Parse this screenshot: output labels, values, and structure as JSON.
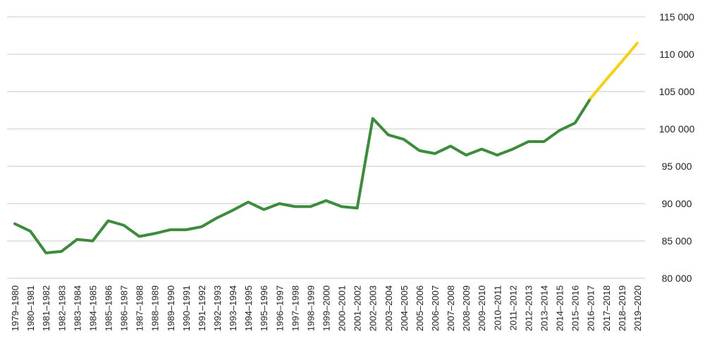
{
  "chart_data": {
    "type": "line",
    "x": [
      "1979–1980",
      "1980–1981",
      "1981–1982",
      "1982–1983",
      "1983–1984",
      "1984–1985",
      "1985–1986",
      "1986–1987",
      "1987–1988",
      "1988–1989",
      "1989–1990",
      "1990–1991",
      "1991–1992",
      "1992–1993",
      "1993–1994",
      "1994–1995",
      "1995–1996",
      "1996–1997",
      "1997–1998",
      "1998–1999",
      "1999–2000",
      "2000–2001",
      "2001–2002",
      "2002–2003",
      "2003–2004",
      "2004–2005",
      "2005–2006",
      "2006–2007",
      "2007–2008",
      "2008–2009",
      "2009–2010",
      "2010–2011",
      "2011–2012",
      "2012–2013",
      "2013–2014",
      "2014–2015",
      "2015–2016",
      "2016–2017",
      "2017–2018",
      "2018–2019",
      "2019–2020"
    ],
    "series": [
      {
        "color": "#3d8b3d",
        "values": [
          87300,
          86300,
          83400,
          83600,
          85200,
          85000,
          87700,
          87100,
          85600,
          86000,
          86500,
          86500,
          86900,
          88100,
          89100,
          90200,
          89200,
          90000,
          89600,
          89600,
          90400,
          89600,
          89400,
          101400,
          99200,
          98600,
          97100,
          96700,
          97700,
          96500,
          97300,
          96500,
          97300,
          98300,
          98300,
          99800,
          100800,
          104100,
          null,
          null,
          null
        ]
      },
      {
        "color": "#f5d019",
        "values": [
          null,
          null,
          null,
          null,
          null,
          null,
          null,
          null,
          null,
          null,
          null,
          null,
          null,
          null,
          null,
          null,
          null,
          null,
          null,
          null,
          null,
          null,
          null,
          null,
          null,
          null,
          null,
          null,
          null,
          null,
          null,
          null,
          null,
          null,
          null,
          null,
          null,
          104100,
          106600,
          109000,
          111500
        ]
      }
    ],
    "yticks": [
      "80 000",
      "85 000",
      "90 000",
      "95 000",
      "100 000",
      "105 000",
      "110 000",
      "115 000"
    ],
    "ylim": [
      80000,
      115000
    ],
    "grid": true
  }
}
